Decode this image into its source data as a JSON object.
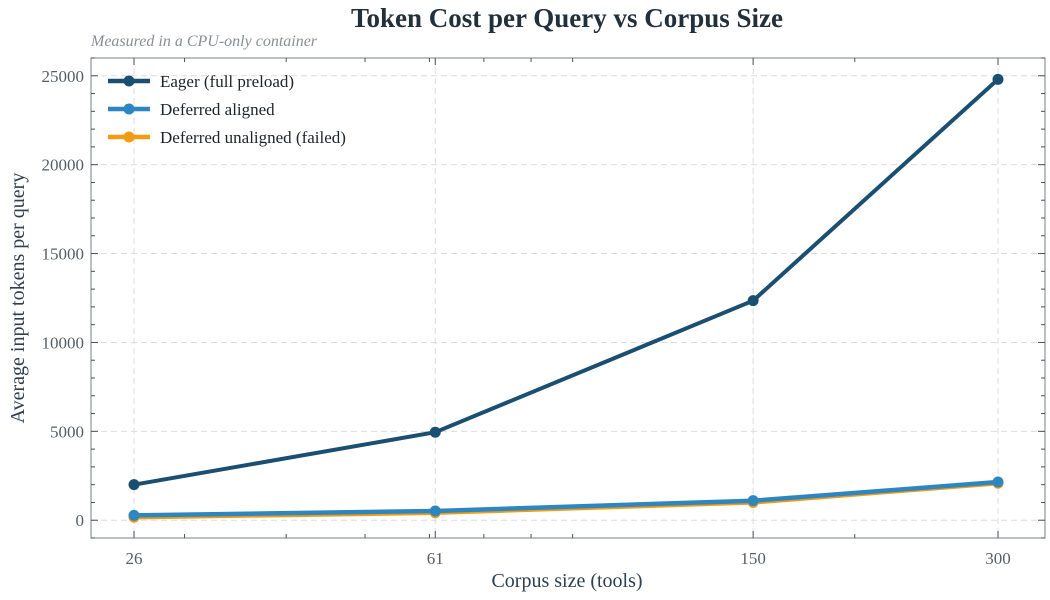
{
  "chart_data": {
    "type": "line",
    "title": "Token Cost per Query vs Corpus Size",
    "subtitle": "Measured in a CPU-only container",
    "xlabel": "Corpus size (tools)",
    "ylabel": "Average input tokens per query",
    "x_scale": "log",
    "x": [
      26,
      61,
      150,
      300
    ],
    "x_tick_labels": [
      "26",
      "61",
      "150",
      "300"
    ],
    "ylim": [
      -1000,
      26000
    ],
    "y_ticks": [
      0,
      5000,
      10000,
      15000,
      20000,
      25000
    ],
    "y_tick_labels": [
      "0",
      "5000",
      "10000",
      "15000",
      "20000",
      "25000"
    ],
    "grid": true,
    "legend_position": "top-left",
    "series": [
      {
        "name": "Eager (full preload)",
        "color": "#1b4f72",
        "values": [
          2000,
          4950,
          12350,
          24800
        ]
      },
      {
        "name": "Deferred aligned",
        "color": "#2e86c1",
        "values": [
          270,
          520,
          1100,
          2150
        ]
      },
      {
        "name": "Deferred unaligned (failed)",
        "color": "#f39c12",
        "values": [
          170,
          420,
          1000,
          2080
        ]
      }
    ]
  }
}
